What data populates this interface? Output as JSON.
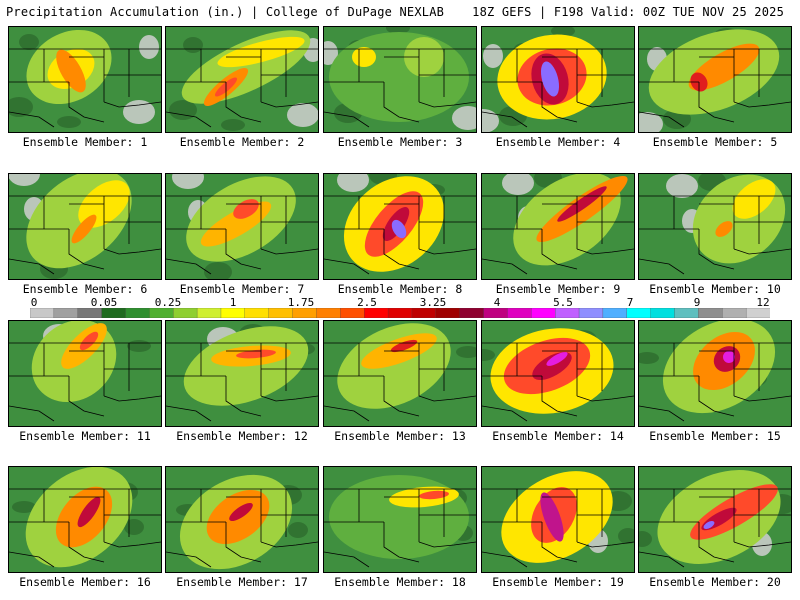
{
  "header": {
    "left": "Precipitation Accumulation (in.) | College of DuPage NEXLAB",
    "right": "18Z GEFS | F198 Valid: 00Z TUE NOV 25 2025"
  },
  "members": [
    {
      "label": "Ensemble Member: 1",
      "max_in": 1.75,
      "bands": [
        {
          "v": 0.5,
          "cx": 60,
          "cy": 40,
          "rx": 45,
          "ry": 34,
          "rot": -30
        },
        {
          "v": 1.0,
          "cx": 62,
          "cy": 42,
          "rx": 25,
          "ry": 18,
          "rot": -30
        },
        {
          "v": 1.75,
          "cx": 62,
          "cy": 44,
          "rx": 10,
          "ry": 24,
          "rot": -30
        }
      ]
    },
    {
      "label": "Ensemble Member: 2",
      "max_in": 3.0,
      "bands": [
        {
          "v": 0.5,
          "cx": 80,
          "cy": 40,
          "rx": 70,
          "ry": 24,
          "rot": -25
        },
        {
          "v": 1.0,
          "cx": 95,
          "cy": 25,
          "rx": 45,
          "ry": 10,
          "rot": -15
        },
        {
          "v": 1.75,
          "cx": 60,
          "cy": 60,
          "rx": 28,
          "ry": 8,
          "rot": -40
        },
        {
          "v": 3.0,
          "cx": 60,
          "cy": 60,
          "rx": 14,
          "ry": 4,
          "rot": -40
        }
      ]
    },
    {
      "label": "Ensemble Member: 3",
      "max_in": 1.0,
      "bands": [
        {
          "v": 0.3,
          "cx": 75,
          "cy": 50,
          "rx": 70,
          "ry": 45,
          "rot": 0
        },
        {
          "v": 0.7,
          "cx": 100,
          "cy": 30,
          "rx": 20,
          "ry": 20,
          "rot": 0
        },
        {
          "v": 1.0,
          "cx": 40,
          "cy": 30,
          "rx": 12,
          "ry": 10,
          "rot": 0
        }
      ]
    },
    {
      "label": "Ensemble Member: 4",
      "max_in": 8.0,
      "bands": [
        {
          "v": 1.0,
          "cx": 70,
          "cy": 50,
          "rx": 55,
          "ry": 42,
          "rot": -10
        },
        {
          "v": 2.5,
          "cx": 70,
          "cy": 50,
          "rx": 35,
          "ry": 28,
          "rot": -15
        },
        {
          "v": 4.5,
          "cx": 68,
          "cy": 52,
          "rx": 18,
          "ry": 26,
          "rot": -15
        },
        {
          "v": 8.0,
          "cx": 68,
          "cy": 52,
          "rx": 8,
          "ry": 18,
          "rot": -15
        }
      ]
    },
    {
      "label": "Ensemble Member: 5",
      "max_in": 3.25,
      "bands": [
        {
          "v": 0.7,
          "cx": 75,
          "cy": 45,
          "rx": 68,
          "ry": 38,
          "rot": -20
        },
        {
          "v": 1.75,
          "cx": 85,
          "cy": 40,
          "rx": 40,
          "ry": 14,
          "rot": -30
        },
        {
          "v": 3.25,
          "cx": 60,
          "cy": 55,
          "rx": 8,
          "ry": 10,
          "rot": -30
        }
      ]
    },
    {
      "label": "Ensemble Member: 6",
      "max_in": 1.75,
      "bands": [
        {
          "v": 0.5,
          "cx": 70,
          "cy": 45,
          "rx": 60,
          "ry": 40,
          "rot": -40
        },
        {
          "v": 1.0,
          "cx": 95,
          "cy": 30,
          "rx": 30,
          "ry": 18,
          "rot": -40
        },
        {
          "v": 1.75,
          "cx": 75,
          "cy": 55,
          "rx": 18,
          "ry": 6,
          "rot": -50
        }
      ]
    },
    {
      "label": "Ensemble Member: 7",
      "max_in": 2.5,
      "bands": [
        {
          "v": 0.7,
          "cx": 75,
          "cy": 45,
          "rx": 60,
          "ry": 35,
          "rot": -30
        },
        {
          "v": 1.5,
          "cx": 70,
          "cy": 50,
          "rx": 40,
          "ry": 12,
          "rot": -30
        },
        {
          "v": 2.5,
          "cx": 80,
          "cy": 35,
          "rx": 14,
          "ry": 8,
          "rot": -30
        }
      ]
    },
    {
      "label": "Ensemble Member: 8",
      "max_in": 7.5,
      "bands": [
        {
          "v": 1.0,
          "cx": 70,
          "cy": 50,
          "rx": 55,
          "ry": 42,
          "rot": -40
        },
        {
          "v": 2.5,
          "cx": 70,
          "cy": 50,
          "rx": 40,
          "ry": 18,
          "rot": -50
        },
        {
          "v": 4.5,
          "cx": 72,
          "cy": 50,
          "rx": 20,
          "ry": 8,
          "rot": -55
        },
        {
          "v": 7.5,
          "cx": 75,
          "cy": 55,
          "rx": 6,
          "ry": 10,
          "rot": -30
        }
      ]
    },
    {
      "label": "Ensemble Member: 9",
      "max_in": 4.5,
      "bands": [
        {
          "v": 0.7,
          "cx": 85,
          "cy": 45,
          "rx": 60,
          "ry": 38,
          "rot": -35
        },
        {
          "v": 2.0,
          "cx": 100,
          "cy": 35,
          "rx": 55,
          "ry": 12,
          "rot": -35
        },
        {
          "v": 4.5,
          "cx": 100,
          "cy": 30,
          "rx": 30,
          "ry": 5,
          "rot": -35
        }
      ]
    },
    {
      "label": "Ensemble Member: 10",
      "max_in": 1.75,
      "bands": [
        {
          "v": 0.5,
          "cx": 100,
          "cy": 45,
          "rx": 50,
          "ry": 40,
          "rot": -40
        },
        {
          "v": 1.0,
          "cx": 115,
          "cy": 25,
          "rx": 25,
          "ry": 15,
          "rot": -40
        },
        {
          "v": 1.75,
          "cx": 85,
          "cy": 55,
          "rx": 10,
          "ry": 6,
          "rot": -40
        }
      ]
    },
    {
      "label": "Ensemble Member: 11",
      "max_in": 2.5,
      "bands": [
        {
          "v": 0.7,
          "cx": 65,
          "cy": 40,
          "rx": 45,
          "ry": 38,
          "rot": -40
        },
        {
          "v": 1.5,
          "cx": 75,
          "cy": 25,
          "rx": 30,
          "ry": 12,
          "rot": -45
        },
        {
          "v": 2.5,
          "cx": 80,
          "cy": 20,
          "rx": 12,
          "ry": 5,
          "rot": -45
        }
      ]
    },
    {
      "label": "Ensemble Member: 12",
      "max_in": 2.5,
      "bands": [
        {
          "v": 0.5,
          "cx": 80,
          "cy": 45,
          "rx": 65,
          "ry": 35,
          "rot": -20
        },
        {
          "v": 1.5,
          "cx": 85,
          "cy": 35,
          "rx": 40,
          "ry": 10,
          "rot": -5
        },
        {
          "v": 2.5,
          "cx": 90,
          "cy": 33,
          "rx": 20,
          "ry": 4,
          "rot": -5
        }
      ]
    },
    {
      "label": "Ensemble Member: 13",
      "max_in": 3.25,
      "bands": [
        {
          "v": 0.5,
          "cx": 70,
          "cy": 45,
          "rx": 60,
          "ry": 38,
          "rot": -25
        },
        {
          "v": 1.5,
          "cx": 75,
          "cy": 30,
          "rx": 40,
          "ry": 12,
          "rot": -20
        },
        {
          "v": 3.25,
          "cx": 80,
          "cy": 25,
          "rx": 14,
          "ry": 4,
          "rot": -20
        }
      ]
    },
    {
      "label": "Ensemble Member: 14",
      "max_in": 6.5,
      "bands": [
        {
          "v": 1.0,
          "cx": 70,
          "cy": 50,
          "rx": 62,
          "ry": 42,
          "rot": -10
        },
        {
          "v": 2.5,
          "cx": 65,
          "cy": 45,
          "rx": 45,
          "ry": 25,
          "rot": -20
        },
        {
          "v": 4.5,
          "cx": 70,
          "cy": 45,
          "rx": 22,
          "ry": 10,
          "rot": -30
        },
        {
          "v": 6.5,
          "cx": 75,
          "cy": 38,
          "rx": 12,
          "ry": 4,
          "rot": -30
        }
      ]
    },
    {
      "label": "Ensemble Member: 15",
      "max_in": 6.5,
      "bands": [
        {
          "v": 0.7,
          "cx": 80,
          "cy": 45,
          "rx": 60,
          "ry": 42,
          "rot": -30
        },
        {
          "v": 2.0,
          "cx": 85,
          "cy": 40,
          "rx": 35,
          "ry": 24,
          "rot": -40
        },
        {
          "v": 4.0,
          "cx": 88,
          "cy": 38,
          "rx": 14,
          "ry": 12,
          "rot": -40
        },
        {
          "v": 6.5,
          "cx": 90,
          "cy": 36,
          "rx": 6,
          "ry": 6,
          "rot": -40
        }
      ]
    },
    {
      "label": "Ensemble Member: 16",
      "max_in": 5.5,
      "bands": [
        {
          "v": 0.7,
          "cx": 70,
          "cy": 50,
          "rx": 60,
          "ry": 42,
          "rot": -40
        },
        {
          "v": 2.0,
          "cx": 75,
          "cy": 50,
          "rx": 35,
          "ry": 22,
          "rot": -50
        },
        {
          "v": 4.5,
          "cx": 80,
          "cy": 45,
          "rx": 18,
          "ry": 6,
          "rot": -55
        }
      ]
    },
    {
      "label": "Ensemble Member: 17",
      "max_in": 4.5,
      "bands": [
        {
          "v": 0.7,
          "cx": 70,
          "cy": 55,
          "rx": 60,
          "ry": 42,
          "rot": -30
        },
        {
          "v": 2.0,
          "cx": 72,
          "cy": 50,
          "rx": 35,
          "ry": 22,
          "rot": -35
        },
        {
          "v": 4.5,
          "cx": 75,
          "cy": 45,
          "rx": 14,
          "ry": 5,
          "rot": -35
        }
      ]
    },
    {
      "label": "Ensemble Member: 18",
      "max_in": 2.5,
      "bands": [
        {
          "v": 0.3,
          "cx": 75,
          "cy": 50,
          "rx": 70,
          "ry": 42,
          "rot": 0
        },
        {
          "v": 1.0,
          "cx": 100,
          "cy": 30,
          "rx": 35,
          "ry": 10,
          "rot": -5
        },
        {
          "v": 2.5,
          "cx": 110,
          "cy": 28,
          "rx": 15,
          "ry": 4,
          "rot": -5
        }
      ]
    },
    {
      "label": "Ensemble Member: 19",
      "max_in": 5.5,
      "bands": [
        {
          "v": 1.0,
          "cx": 75,
          "cy": 50,
          "rx": 60,
          "ry": 40,
          "rot": -30
        },
        {
          "v": 2.5,
          "cx": 72,
          "cy": 48,
          "rx": 30,
          "ry": 20,
          "rot": -60
        },
        {
          "v": 5.5,
          "cx": 70,
          "cy": 50,
          "rx": 8,
          "ry": 26,
          "rot": -20
        }
      ]
    },
    {
      "label": "Ensemble Member: 20",
      "max_in": 7.5,
      "bands": [
        {
          "v": 0.7,
          "cx": 80,
          "cy": 50,
          "rx": 65,
          "ry": 42,
          "rot": -25
        },
        {
          "v": 2.5,
          "cx": 95,
          "cy": 45,
          "rx": 50,
          "ry": 14,
          "rot": -30
        },
        {
          "v": 4.5,
          "cx": 80,
          "cy": 52,
          "rx": 20,
          "ry": 6,
          "rot": -30
        },
        {
          "v": 7.5,
          "cx": 70,
          "cy": 58,
          "rx": 6,
          "ry": 3,
          "rot": -30
        }
      ]
    }
  ],
  "colorbar": {
    "tick_labels": [
      "0",
      "0.05",
      "0.25",
      "1",
      "1.75",
      "2.5",
      "3.25",
      "4",
      "5.5",
      "7",
      "9",
      "12"
    ],
    "colors": [
      "#c8c8c8",
      "#a0a0a0",
      "#787878",
      "#1f6b1f",
      "#2f8f2f",
      "#4faf2f",
      "#8fcf2f",
      "#cfef2f",
      "#ffff00",
      "#ffdf00",
      "#ffbf00",
      "#ff9f00",
      "#ff7f00",
      "#ff4f00",
      "#ff0000",
      "#df0000",
      "#bf0000",
      "#9f0000",
      "#8f0030",
      "#bf0080",
      "#df00bf",
      "#ff00ff",
      "#bf60ff",
      "#8f8fff",
      "#4fafff",
      "#00ffff",
      "#00dfdf",
      "#5fbfbf",
      "#8f8f8f",
      "#b0b0b0",
      "#d0d0d0"
    ]
  }
}
